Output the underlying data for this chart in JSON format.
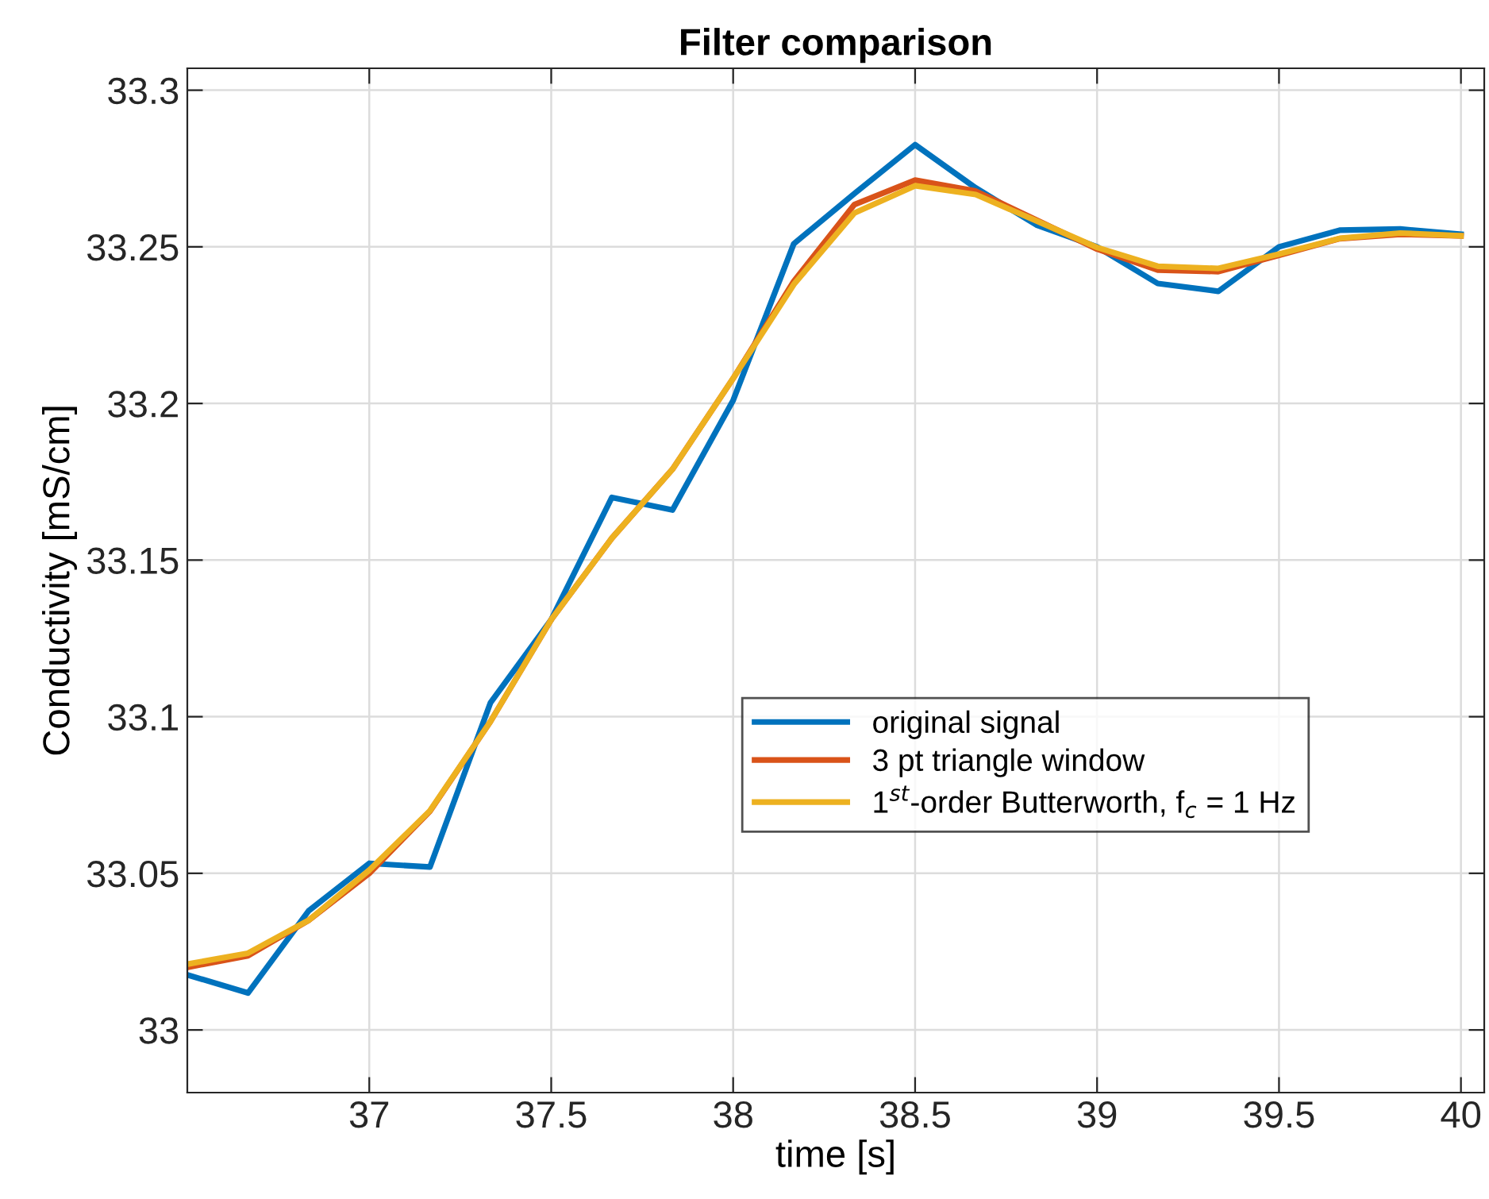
{
  "chart_data": {
    "type": "line",
    "title": "Filter comparison",
    "xlabel": "time [s]",
    "ylabel": "Conductivity [mS/cm]",
    "x": [
      36.5,
      36.6667,
      36.8333,
      37,
      37.1667,
      37.3333,
      37.5,
      37.6667,
      37.8333,
      38,
      38.1667,
      38.3333,
      38.5,
      38.6667,
      38.8333,
      39,
      39.1667,
      39.3333,
      39.5,
      39.6667,
      39.8333,
      40
    ],
    "series": [
      {
        "name": "original signal",
        "color": "#0072bd",
        "values": [
          33.0176,
          33.0118,
          33.038,
          33.0532,
          33.052,
          33.1045,
          33.131,
          33.17,
          33.166,
          33.201,
          33.251,
          33.267,
          33.2826,
          33.2688,
          33.257,
          33.25,
          33.2383,
          33.2358,
          33.25,
          33.2553,
          33.2557,
          33.254
        ]
      },
      {
        "name": "3 pt triangle window",
        "color": "#d95319",
        "values": [
          33.02,
          33.0237,
          33.035,
          33.05,
          33.0698,
          33.0985,
          33.131,
          33.157,
          33.179,
          33.208,
          33.239,
          33.2635,
          33.2713,
          33.2678,
          33.2586,
          33.2493,
          33.2426,
          33.2421,
          33.2473,
          33.2526,
          33.254,
          33.2535
        ]
      },
      {
        "name": "1$^{st}$-order Butterworth, f$_{c}$ = 1 Hz",
        "color": "#edb120",
        "values": [
          33.021,
          33.0245,
          33.035,
          33.051,
          33.07,
          33.0985,
          33.131,
          33.157,
          33.179,
          33.208,
          33.238,
          33.2608,
          33.2695,
          33.2667,
          33.2583,
          33.2498,
          33.2438,
          33.2431,
          33.2477,
          33.2527,
          33.2544,
          33.2535
        ]
      }
    ],
    "xlim": [
      36.5,
      40.064
    ],
    "ylim": [
      32.98,
      33.307
    ],
    "xticks": [
      37,
      37.5,
      38,
      38.5,
      39,
      39.5,
      40
    ],
    "yticks": [
      33,
      33.05,
      33.1,
      33.15,
      33.2,
      33.25,
      33.3
    ],
    "grid": true,
    "legend": "center right",
    "line_style": "solid"
  }
}
